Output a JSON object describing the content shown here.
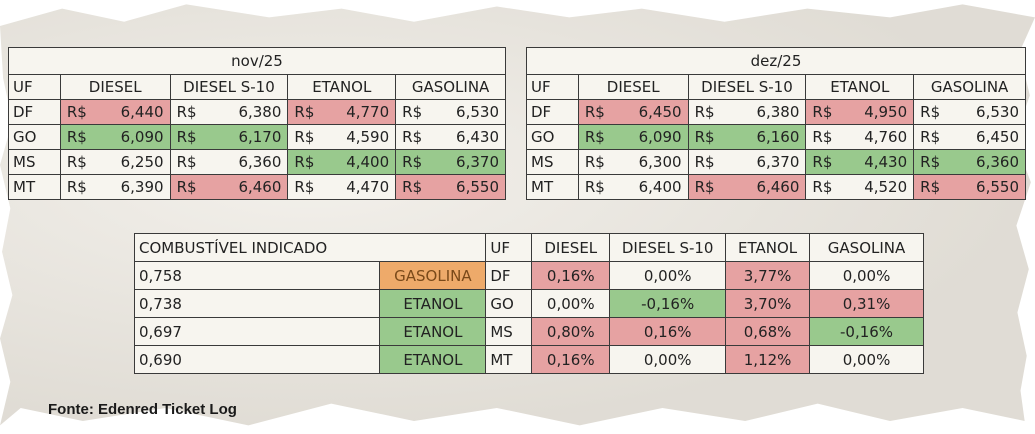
{
  "tables": [
    {
      "period": "nov/25",
      "headers": [
        "UF",
        "DIESEL",
        "DIESEL S-10",
        "ETANOL",
        "GASOLINA"
      ],
      "currency": "R$",
      "rows": [
        {
          "uf": "DF",
          "cells": [
            {
              "value": "6,440",
              "highlight": "red"
            },
            {
              "value": "6,380",
              "highlight": "none"
            },
            {
              "value": "4,770",
              "highlight": "red"
            },
            {
              "value": "6,530",
              "highlight": "none"
            }
          ]
        },
        {
          "uf": "GO",
          "cells": [
            {
              "value": "6,090",
              "highlight": "green"
            },
            {
              "value": "6,170",
              "highlight": "green"
            },
            {
              "value": "4,590",
              "highlight": "none"
            },
            {
              "value": "6,430",
              "highlight": "none"
            }
          ]
        },
        {
          "uf": "MS",
          "cells": [
            {
              "value": "6,250",
              "highlight": "none"
            },
            {
              "value": "6,360",
              "highlight": "none"
            },
            {
              "value": "4,400",
              "highlight": "green"
            },
            {
              "value": "6,370",
              "highlight": "green"
            }
          ]
        },
        {
          "uf": "MT",
          "cells": [
            {
              "value": "6,390",
              "highlight": "none"
            },
            {
              "value": "6,460",
              "highlight": "red"
            },
            {
              "value": "4,470",
              "highlight": "none"
            },
            {
              "value": "6,550",
              "highlight": "red"
            }
          ]
        }
      ]
    },
    {
      "period": "dez/25",
      "headers": [
        "UF",
        "DIESEL",
        "DIESEL S-10",
        "ETANOL",
        "GASOLINA"
      ],
      "currency": "R$",
      "rows": [
        {
          "uf": "DF",
          "cells": [
            {
              "value": "6,450",
              "highlight": "red"
            },
            {
              "value": "6,380",
              "highlight": "none"
            },
            {
              "value": "4,950",
              "highlight": "red"
            },
            {
              "value": "6,530",
              "highlight": "none"
            }
          ]
        },
        {
          "uf": "GO",
          "cells": [
            {
              "value": "6,090",
              "highlight": "green"
            },
            {
              "value": "6,160",
              "highlight": "green"
            },
            {
              "value": "4,760",
              "highlight": "none"
            },
            {
              "value": "6,450",
              "highlight": "none"
            }
          ]
        },
        {
          "uf": "MS",
          "cells": [
            {
              "value": "6,300",
              "highlight": "none"
            },
            {
              "value": "6,370",
              "highlight": "none"
            },
            {
              "value": "4,430",
              "highlight": "green"
            },
            {
              "value": "6,360",
              "highlight": "green"
            }
          ]
        },
        {
          "uf": "MT",
          "cells": [
            {
              "value": "6,400",
              "highlight": "none"
            },
            {
              "value": "6,460",
              "highlight": "red"
            },
            {
              "value": "4,520",
              "highlight": "none"
            },
            {
              "value": "6,550",
              "highlight": "red"
            }
          ]
        }
      ]
    }
  ],
  "comparison": {
    "headers": [
      "COMBUSTÍVEL INDICADO",
      "",
      "UF",
      "DIESEL",
      "DIESEL S-10",
      "ETANOL",
      "GASOLINA"
    ],
    "rows": [
      {
        "ratio": "0,758",
        "fuel": "GASOLINA",
        "fuel_highlight": "orange",
        "uf": "DF",
        "cells": [
          {
            "value": "0,16%",
            "highlight": "red"
          },
          {
            "value": "0,00%",
            "highlight": "none"
          },
          {
            "value": "3,77%",
            "highlight": "red"
          },
          {
            "value": "0,00%",
            "highlight": "none"
          }
        ]
      },
      {
        "ratio": "0,738",
        "fuel": "ETANOL",
        "fuel_highlight": "green",
        "uf": "GO",
        "cells": [
          {
            "value": "0,00%",
            "highlight": "none"
          },
          {
            "value": "-0,16%",
            "highlight": "green"
          },
          {
            "value": "3,70%",
            "highlight": "red"
          },
          {
            "value": "0,31%",
            "highlight": "red"
          }
        ]
      },
      {
        "ratio": "0,697",
        "fuel": "ETANOL",
        "fuel_highlight": "green",
        "uf": "MS",
        "cells": [
          {
            "value": "0,80%",
            "highlight": "red"
          },
          {
            "value": "0,16%",
            "highlight": "red"
          },
          {
            "value": "0,68%",
            "highlight": "red"
          },
          {
            "value": "-0,16%",
            "highlight": "green"
          }
        ]
      },
      {
        "ratio": "0,690",
        "fuel": "ETANOL",
        "fuel_highlight": "green",
        "uf": "MT",
        "cells": [
          {
            "value": "0,16%",
            "highlight": "red"
          },
          {
            "value": "0,00%",
            "highlight": "none"
          },
          {
            "value": "1,12%",
            "highlight": "red"
          },
          {
            "value": "0,00%",
            "highlight": "none"
          }
        ]
      }
    ]
  },
  "source": "Fonte: Edenred Ticket Log",
  "colors": {
    "red": "#e6a2a2",
    "green": "#99c98d",
    "orange": "#eeaa6a",
    "paper": "#ece8e0"
  }
}
